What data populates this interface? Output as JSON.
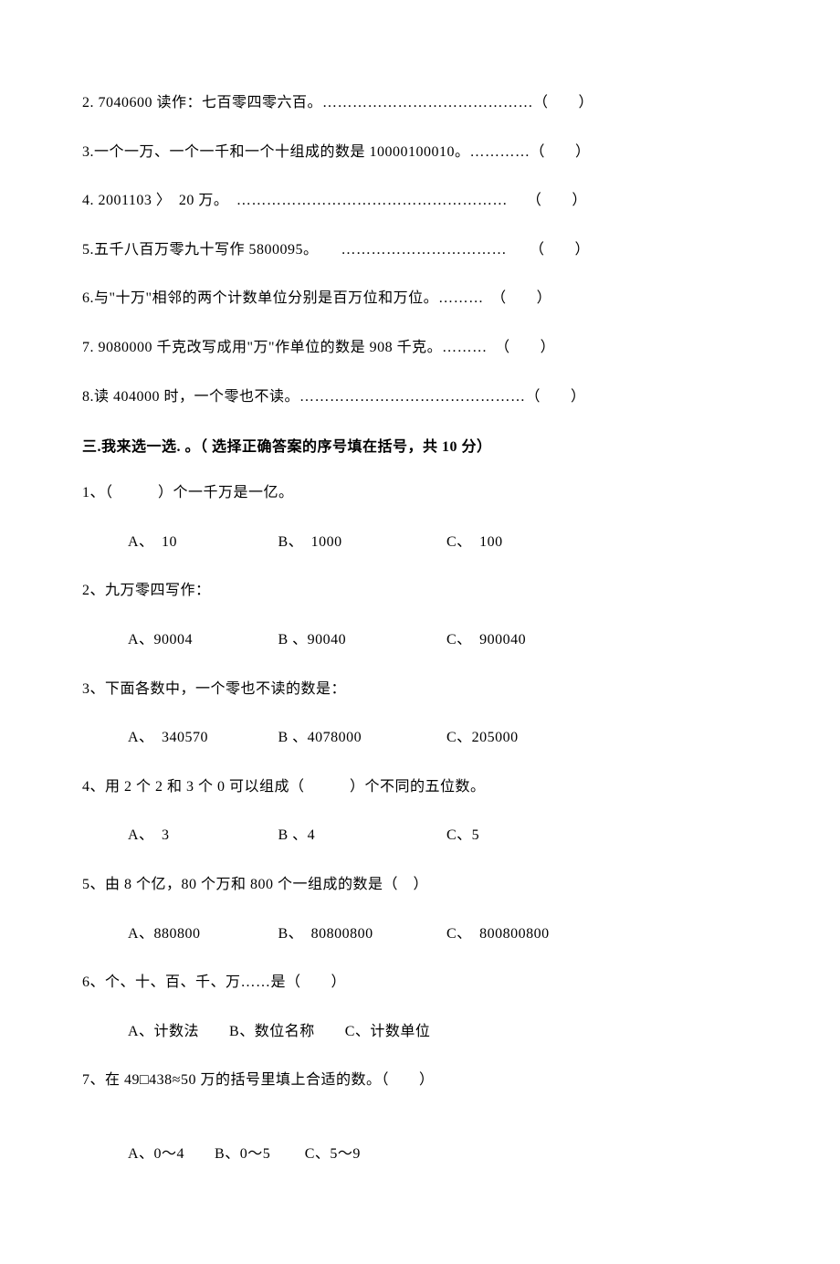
{
  "tf_questions": [
    {
      "text": "2. 7040600 读作：七百零四零六百。……………………………………（　　）"
    },
    {
      "text": "3.一个一万、一个一千和一个十组成的数是 10000100010。…………（　　）"
    },
    {
      "text": "4. 2001103 〉　20 万。　………………………………………………　 （　　）"
    },
    {
      "text": "5.五千八百万零九十写作 5800095。　　……………………………　　（　　）"
    },
    {
      "text": "6.与\"十万\"相邻的两个计数单位分别是百万位和万位。………　（　　）"
    },
    {
      "text": "7. 9080000 千克改写成用\"万\"作单位的数是 908 千克。………　（　　）"
    },
    {
      "text": "8.读 404000 时，一个零也不读。………………………………………（　　）"
    }
  ],
  "section_heading": "三.我来选一选. 。（ 选择正确答案的序号填在括号，共 10 分）",
  "mc_questions": [
    {
      "stem": "1、（　　　）个一千万是一亿。",
      "a": "A、　10",
      "b": "B、　1000",
      "c": "C、　100"
    },
    {
      "stem": "2、九万零四写作：",
      "a": "A、90004",
      "b": "B 、90040",
      "c": "C、　900040"
    },
    {
      "stem": "3、下面各数中，一个零也不读的数是：",
      "a": "A、　340570",
      "b": "B 、4078000",
      "c": "C、205000"
    },
    {
      "stem": "4、用 2 个 2 和 3 个 0 可以组成（　　　）个不同的五位数。",
      "a": "A、　3",
      "b": "B 、4",
      "c": "C、5"
    },
    {
      "stem": "5、由 8 个亿，80 个万和 800 个一组成的数是（　）",
      "a": "A、880800",
      "b": "B、　80800800",
      "c": "C、　800800800"
    },
    {
      "stem": "6、个、十、百、千、万……是（　　）",
      "inline_options": "A、计数法　　B、数位名称　　C、计数单位"
    },
    {
      "stem": "7、在 49□438≈50 万的括号里填上合适的数。（　　）",
      "inline_options": "A、0～4　　B、0～5　　  C、5～9",
      "extra_gap": true
    }
  ]
}
